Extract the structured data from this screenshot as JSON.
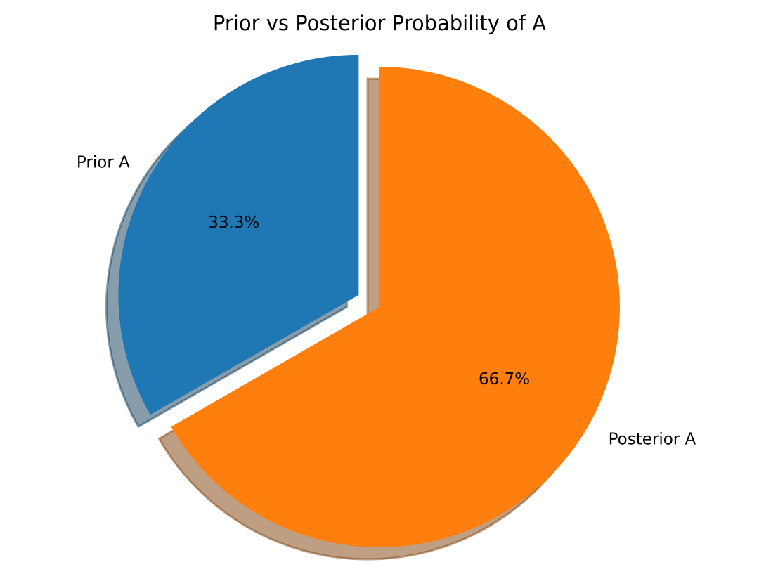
{
  "chart_data": {
    "type": "pie",
    "title": "Prior vs Posterior Probability of A",
    "slices": [
      {
        "label": "Prior A",
        "value": 33.3,
        "percent_label": "33.3%",
        "color": "#1f77b4",
        "explode": 0.1
      },
      {
        "label": "Posterior A",
        "value": 66.7,
        "percent_label": "66.7%",
        "color": "#ff7f0e",
        "explode": 0
      }
    ],
    "start_angle_deg": 90,
    "direction": "counterclockwise",
    "shadow": true,
    "legend": "none"
  }
}
